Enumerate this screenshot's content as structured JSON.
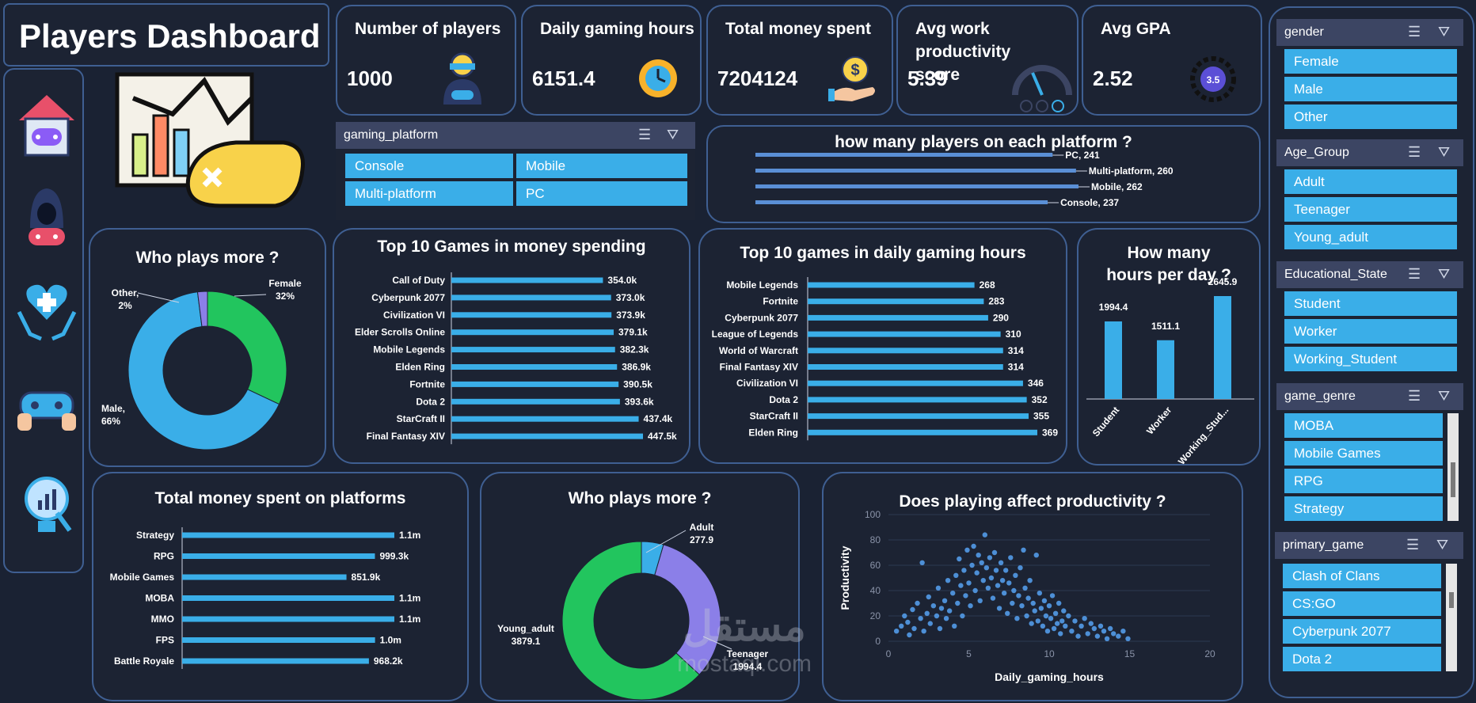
{
  "header": {
    "title": "Players Dashboard"
  },
  "kpis": [
    {
      "title": "Number of players",
      "value": "1000",
      "icon": "gamer-icon"
    },
    {
      "title": "Daily gaming hours",
      "value": "6151.4",
      "icon": "clock-icon"
    },
    {
      "title": "Total money spent",
      "value": "7204124",
      "icon": "money-hand-icon"
    },
    {
      "title": "Avg work productivity score",
      "value": "5.39",
      "icon": "gauge-icon"
    },
    {
      "title": "Avg GPA",
      "value": "2.52",
      "icon": "gpa-badge-icon"
    }
  ],
  "nav": [
    "home-gamepad-icon",
    "hacker-gamer-icon",
    "health-hands-icon",
    "controller-hands-icon",
    "analytics-bulb-icon"
  ],
  "slicers": {
    "gaming_platform": {
      "label": "gaming_platform",
      "items": [
        "Console",
        "Mobile",
        "Multi-platform",
        "PC"
      ]
    },
    "gender": {
      "label": "gender",
      "items": [
        "Female",
        "Male",
        "Other"
      ]
    },
    "age_group": {
      "label": "Age_Group",
      "items": [
        "Adult",
        "Teenager",
        "Young_adult"
      ]
    },
    "educational_state": {
      "label": "Educational_State",
      "items": [
        "Student",
        "Worker",
        "Working_Student"
      ]
    },
    "game_genre": {
      "label": "game_genre",
      "items": [
        "MOBA",
        "Mobile Games",
        "RPG",
        "Strategy"
      ]
    },
    "primary_game": {
      "label": "primary_game",
      "items": [
        "Clash of Clans",
        "CS:GO",
        "Cyberpunk 2077",
        "Dota 2"
      ]
    }
  },
  "watermark": {
    "arabic": "مستقل",
    "latin": "mostaql.com"
  },
  "chart_data": [
    {
      "id": "platform_players",
      "type": "bar",
      "title": "how many players on each platform ?",
      "categories": [
        "PC",
        "Multi-platform",
        "Mobile",
        "Console"
      ],
      "values": [
        241,
        260,
        262,
        237
      ],
      "data_labels": [
        "PC, 241",
        "Multi-platform, 260",
        "Mobile, 262",
        "Console, 237"
      ]
    },
    {
      "id": "gender_donut",
      "type": "pie",
      "title": "Who plays more ?",
      "categories": [
        "Female",
        "Male",
        "Other"
      ],
      "values": [
        32,
        66,
        2
      ],
      "data_labels": [
        "Female\n32%",
        "Male,\n66%",
        "Other,\n2%"
      ],
      "colors": [
        "#22c55e",
        "#3aaee8",
        "#8b7fe8"
      ]
    },
    {
      "id": "top_money",
      "type": "bar",
      "title": "Top 10 Games in money spending",
      "categories": [
        "Call of Duty",
        "Cyberpunk 2077",
        "Civilization VI",
        "Elder Scrolls Online",
        "Mobile Legends",
        "Elden Ring",
        "Fortnite",
        "Dota 2",
        "StarCraft II",
        "Final Fantasy XIV"
      ],
      "values": [
        354.0,
        373.0,
        373.9,
        379.1,
        382.3,
        386.9,
        390.5,
        393.6,
        437.4,
        447.5
      ],
      "data_labels": [
        "354.0k",
        "373.0k",
        "373.9k",
        "379.1k",
        "382.3k",
        "386.9k",
        "390.5k",
        "393.6k",
        "437.4k",
        "447.5k"
      ]
    },
    {
      "id": "top_hours",
      "type": "bar",
      "title": "Top 10 games in daily gaming hours",
      "categories": [
        "Mobile Legends",
        "Fortnite",
        "Cyberpunk 2077",
        "League of Legends",
        "World of Warcraft",
        "Final Fantasy XIV",
        "Civilization VI",
        "Dota 2",
        "StarCraft II",
        "Elden Ring"
      ],
      "values": [
        268,
        283,
        290,
        310,
        314,
        314,
        346,
        352,
        355,
        369
      ],
      "data_labels": [
        "268",
        "283",
        "290",
        "310",
        "314",
        "314",
        "346",
        "352",
        "355",
        "369"
      ]
    },
    {
      "id": "hours_per_day",
      "type": "bar",
      "title": "How  many hours per day ?",
      "categories": [
        "Student",
        "Worker",
        "Working_Stud..."
      ],
      "values": [
        1994.4,
        1511.1,
        2645.9
      ],
      "data_labels": [
        "1994.4",
        "1511.1",
        "2645.9"
      ]
    },
    {
      "id": "money_platforms",
      "type": "bar",
      "title": "Total money spent on platforms",
      "categories": [
        "Strategy",
        "RPG",
        "Mobile Games",
        "MOBA",
        "MMO",
        "FPS",
        "Battle Royale"
      ],
      "values": [
        1100,
        999.3,
        851.9,
        1100,
        1100,
        1000,
        968.2
      ],
      "data_labels": [
        "1.1m",
        "999.3k",
        "851.9k",
        "1.1m",
        "1.1m",
        "1.0m",
        "968.2k"
      ]
    },
    {
      "id": "age_donut",
      "type": "pie",
      "title": "Who plays more ?",
      "categories": [
        "Adult",
        "Teenager",
        "Young_adult"
      ],
      "values": [
        277.9,
        1994.4,
        3879.1
      ],
      "data_labels": [
        "Adult\n277.9",
        "Teenager\n1994.4",
        "Young_adult\n3879.1"
      ],
      "colors": [
        "#3aaee8",
        "#8b7fe8",
        "#22c55e"
      ]
    },
    {
      "id": "productivity_scatter",
      "type": "scatter",
      "title": "Does playing affect productivity ?",
      "xlabel": "Daily_gaming_hours",
      "ylabel": "Productivity",
      "xlim": [
        0,
        20
      ],
      "ylim": [
        0,
        100
      ],
      "xticks": [
        "0",
        "5",
        "10",
        "15",
        "20"
      ],
      "yticks": [
        "0",
        "20",
        "40",
        "60",
        "80",
        "100"
      ],
      "points": [
        [
          0.5,
          8
        ],
        [
          0.8,
          12
        ],
        [
          1.0,
          20
        ],
        [
          1.2,
          15
        ],
        [
          1.3,
          5
        ],
        [
          1.5,
          25
        ],
        [
          1.6,
          10
        ],
        [
          1.8,
          30
        ],
        [
          2.0,
          18
        ],
        [
          2.1,
          62
        ],
        [
          2.2,
          8
        ],
        [
          2.4,
          22
        ],
        [
          2.5,
          35
        ],
        [
          2.6,
          14
        ],
        [
          2.8,
          28
        ],
        [
          3.0,
          20
        ],
        [
          3.1,
          42
        ],
        [
          3.2,
          10
        ],
        [
          3.3,
          26
        ],
        [
          3.5,
          32
        ],
        [
          3.6,
          18
        ],
        [
          3.7,
          48
        ],
        [
          3.8,
          24
        ],
        [
          4.0,
          38
        ],
        [
          4.1,
          12
        ],
        [
          4.2,
          52
        ],
        [
          4.3,
          30
        ],
        [
          4.4,
          65
        ],
        [
          4.5,
          44
        ],
        [
          4.6,
          20
        ],
        [
          4.7,
          56
        ],
        [
          4.8,
          36
        ],
        [
          4.9,
          72
        ],
        [
          5.0,
          46
        ],
        [
          5.1,
          28
        ],
        [
          5.2,
          60
        ],
        [
          5.3,
          75
        ],
        [
          5.4,
          40
        ],
        [
          5.5,
          54
        ],
        [
          5.6,
          68
        ],
        [
          5.7,
          32
        ],
        [
          5.8,
          62
        ],
        [
          5.9,
          48
        ],
        [
          6.0,
          84
        ],
        [
          6.1,
          58
        ],
        [
          6.2,
          42
        ],
        [
          6.3,
          66
        ],
        [
          6.4,
          50
        ],
        [
          6.5,
          34
        ],
        [
          6.6,
          70
        ],
        [
          6.7,
          56
        ],
        [
          6.8,
          44
        ],
        [
          6.9,
          26
        ],
        [
          7.0,
          62
        ],
        [
          7.1,
          48
        ],
        [
          7.2,
          38
        ],
        [
          7.3,
          56
        ],
        [
          7.4,
          22
        ],
        [
          7.5,
          46
        ],
        [
          7.6,
          66
        ],
        [
          7.7,
          30
        ],
        [
          7.8,
          40
        ],
        [
          7.9,
          52
        ],
        [
          8.0,
          18
        ],
        [
          8.1,
          36
        ],
        [
          8.2,
          58
        ],
        [
          8.3,
          28
        ],
        [
          8.4,
          72
        ],
        [
          8.5,
          42
        ],
        [
          8.6,
          20
        ],
        [
          8.7,
          34
        ],
        [
          8.8,
          48
        ],
        [
          8.9,
          14
        ],
        [
          9.0,
          30
        ],
        [
          9.1,
          24
        ],
        [
          9.2,
          68
        ],
        [
          9.3,
          16
        ],
        [
          9.4,
          38
        ],
        [
          9.5,
          26
        ],
        [
          9.6,
          12
        ],
        [
          9.7,
          32
        ],
        [
          9.8,
          20
        ],
        [
          9.9,
          8
        ],
        [
          10.0,
          28
        ],
        [
          10.1,
          18
        ],
        [
          10.2,
          36
        ],
        [
          10.3,
          10
        ],
        [
          10.4,
          22
        ],
        [
          10.5,
          14
        ],
        [
          10.6,
          30
        ],
        [
          10.7,
          6
        ],
        [
          10.8,
          16
        ],
        [
          10.9,
          24
        ],
        [
          11.0,
          12
        ],
        [
          11.2,
          20
        ],
        [
          11.4,
          8
        ],
        [
          11.6,
          16
        ],
        [
          11.8,
          4
        ],
        [
          12.0,
          12
        ],
        [
          12.2,
          18
        ],
        [
          12.4,
          6
        ],
        [
          12.6,
          14
        ],
        [
          12.8,
          10
        ],
        [
          13.0,
          4
        ],
        [
          13.2,
          12
        ],
        [
          13.4,
          8
        ],
        [
          13.6,
          2
        ],
        [
          13.8,
          10
        ],
        [
          14.0,
          6
        ],
        [
          14.3,
          4
        ],
        [
          14.6,
          8
        ],
        [
          14.9,
          2
        ]
      ]
    }
  ]
}
